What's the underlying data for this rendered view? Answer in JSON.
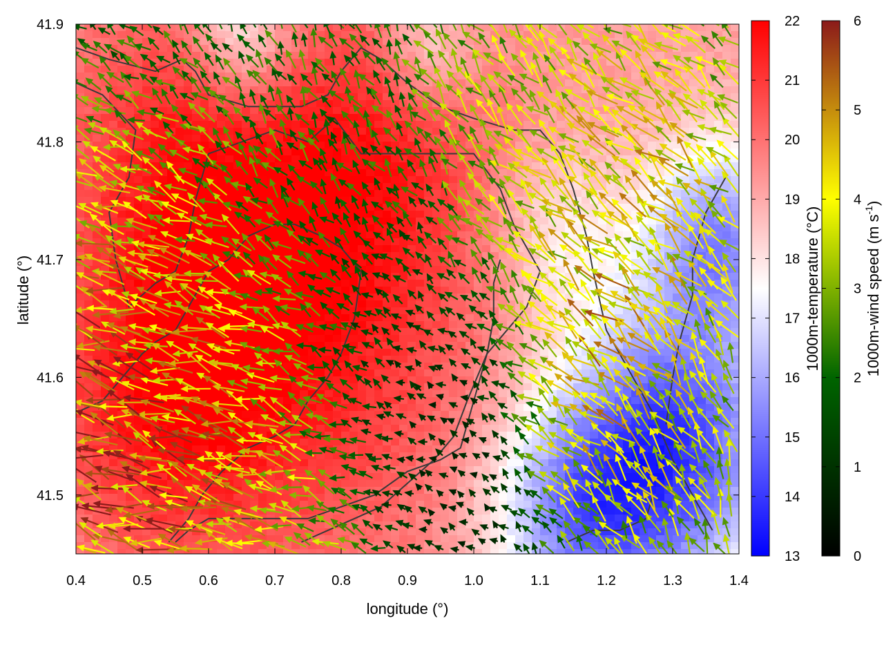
{
  "chart_data": {
    "type": "heatmap",
    "xlabel": "longitude (°)",
    "ylabel": "latitude (°)",
    "xlim": [
      0.4,
      1.4
    ],
    "ylim": [
      41.45,
      41.9
    ],
    "x_ticks": [
      "0.4",
      "0.5",
      "0.6",
      "0.7",
      "0.8",
      "0.9",
      "1.0",
      "1.1",
      "1.2",
      "1.3",
      "1.4"
    ],
    "y_ticks": [
      "41.5",
      "41.6",
      "41.7",
      "41.8",
      "41.9"
    ],
    "temperature_colorbar": {
      "label": "1000m-temperature (°C)",
      "range": [
        13,
        22
      ],
      "ticks": [
        "13",
        "14",
        "15",
        "16",
        "17",
        "18",
        "19",
        "20",
        "21",
        "22"
      ],
      "colors": [
        "#0000ff",
        "#ffffff",
        "#ff0000"
      ]
    },
    "wind_colorbar": {
      "label_main": "1000m-wind speed (m s",
      "label_exp": "-1",
      "label_close": ")",
      "range": [
        0,
        6
      ],
      "ticks": [
        "0",
        "1",
        "2",
        "3",
        "4",
        "5",
        "6"
      ],
      "colors": [
        "#000000",
        "#006400",
        "#ffff00",
        "#8b1a1a"
      ]
    },
    "temperature_field": {
      "background_c": 19.2,
      "features": [
        {
          "lon": 0.72,
          "lat": 41.67,
          "delta_c": 2.6,
          "radius_deg": 0.28
        },
        {
          "lon": 0.52,
          "lat": 41.57,
          "delta_c": 1.5,
          "radius_deg": 0.18
        },
        {
          "lon": 0.55,
          "lat": 41.8,
          "delta_c": 1.2,
          "radius_deg": 0.18
        },
        {
          "lon": 0.87,
          "lat": 41.8,
          "delta_c": 1.0,
          "radius_deg": 0.15
        },
        {
          "lon": 1.3,
          "lat": 41.54,
          "delta_c": -5.0,
          "radius_deg": 0.16
        },
        {
          "lon": 1.15,
          "lat": 41.48,
          "delta_c": -3.2,
          "radius_deg": 0.13
        },
        {
          "lon": 1.37,
          "lat": 41.72,
          "delta_c": -3.5,
          "radius_deg": 0.11
        },
        {
          "lon": 0.65,
          "lat": 41.89,
          "delta_c": -2.2,
          "radius_deg": 0.08
        },
        {
          "lon": 0.93,
          "lat": 41.88,
          "delta_c": -1.5,
          "radius_deg": 0.07
        },
        {
          "lon": 1.13,
          "lat": 41.72,
          "delta_c": -1.4,
          "radius_deg": 0.1
        }
      ]
    },
    "wind_field": {
      "arrow_spacing_deg": 0.016,
      "zones": [
        {
          "lon": 0.44,
          "lat": 41.52,
          "speed": 6.0,
          "dir_deg": 100,
          "radius_deg": 0.22
        },
        {
          "lon": 0.62,
          "lat": 41.55,
          "speed": 4.5,
          "dir_deg": 100,
          "radius_deg": 0.2
        },
        {
          "lon": 0.85,
          "lat": 41.62,
          "speed": 0.4,
          "dir_deg": 45,
          "radius_deg": 0.14
        },
        {
          "lon": 0.95,
          "lat": 41.56,
          "speed": 0.4,
          "dir_deg": 45,
          "radius_deg": 0.1
        },
        {
          "lon": 1.05,
          "lat": 41.82,
          "speed": 3.5,
          "dir_deg": 135,
          "radius_deg": 0.14
        },
        {
          "lon": 1.25,
          "lat": 41.75,
          "speed": 4.5,
          "dir_deg": 125,
          "radius_deg": 0.16
        },
        {
          "lon": 1.3,
          "lat": 41.55,
          "speed": 3.5,
          "dir_deg": 160,
          "radius_deg": 0.14
        },
        {
          "lon": 1.2,
          "lat": 41.6,
          "speed": 5.0,
          "dir_deg": 115,
          "radius_deg": 0.1
        },
        {
          "lon": 0.75,
          "lat": 41.82,
          "speed": 2.0,
          "dir_deg": 160,
          "radius_deg": 0.2
        }
      ]
    },
    "contours": [
      [
        [
          0.4,
          41.88
        ],
        [
          0.45,
          41.87
        ],
        [
          0.52,
          41.86
        ],
        [
          0.56,
          41.87
        ],
        [
          0.58,
          41.86
        ],
        [
          0.6,
          41.84
        ],
        [
          0.66,
          41.83
        ],
        [
          0.74,
          41.83
        ],
        [
          0.78,
          41.84
        ],
        [
          0.8,
          41.86
        ],
        [
          0.83,
          41.88
        ],
        [
          0.86,
          41.87
        ],
        [
          0.9,
          41.85
        ],
        [
          0.95,
          41.83
        ],
        [
          1.0,
          41.82
        ],
        [
          1.06,
          41.81
        ],
        [
          1.1,
          41.81
        ],
        [
          1.13,
          41.79
        ],
        [
          1.15,
          41.76
        ],
        [
          1.17,
          41.72
        ],
        [
          1.18,
          41.69
        ],
        [
          1.2,
          41.64
        ],
        [
          1.23,
          41.61
        ],
        [
          1.27,
          41.57
        ],
        [
          1.3,
          41.53
        ],
        [
          1.33,
          41.5
        ],
        [
          1.36,
          41.47
        ]
      ],
      [
        [
          0.4,
          41.85
        ],
        [
          0.44,
          41.84
        ],
        [
          0.49,
          41.81
        ],
        [
          0.48,
          41.77
        ],
        [
          0.45,
          41.74
        ],
        [
          0.46,
          41.7
        ],
        [
          0.48,
          41.66
        ],
        [
          0.52,
          41.68
        ],
        [
          0.55,
          41.69
        ],
        [
          0.57,
          41.72
        ],
        [
          0.58,
          41.75
        ],
        [
          0.59,
          41.77
        ],
        [
          0.6,
          41.79
        ],
        [
          0.65,
          41.8
        ],
        [
          0.7,
          41.81
        ],
        [
          0.75,
          41.8
        ],
        [
          0.79,
          41.82
        ],
        [
          0.83,
          41.79
        ],
        [
          0.86,
          41.79
        ],
        [
          0.9,
          41.79
        ],
        [
          0.94,
          41.79
        ],
        [
          0.97,
          41.79
        ],
        [
          1.0,
          41.79
        ],
        [
          1.04,
          41.76
        ],
        [
          1.06,
          41.73
        ],
        [
          1.08,
          41.71
        ],
        [
          1.1,
          41.69
        ],
        [
          1.08,
          41.66
        ],
        [
          1.05,
          41.64
        ],
        [
          1.02,
          41.62
        ],
        [
          1.0,
          41.58
        ],
        [
          0.98,
          41.54
        ],
        [
          0.95,
          41.53
        ],
        [
          0.9,
          41.52
        ],
        [
          0.85,
          41.5
        ],
        [
          0.8,
          41.49
        ],
        [
          0.75,
          41.48
        ],
        [
          0.7,
          41.48
        ],
        [
          0.65,
          41.48
        ],
        [
          0.6,
          41.48
        ],
        [
          0.57,
          41.47
        ],
        [
          0.55,
          41.46
        ]
      ],
      [
        [
          0.4,
          41.57
        ],
        [
          0.44,
          41.58
        ],
        [
          0.47,
          41.6
        ],
        [
          0.5,
          41.62
        ],
        [
          0.52,
          41.63
        ],
        [
          0.55,
          41.64
        ],
        [
          0.58,
          41.67
        ],
        [
          0.6,
          41.69
        ],
        [
          0.63,
          41.7
        ],
        [
          0.66,
          41.72
        ],
        [
          0.7,
          41.73
        ],
        [
          0.73,
          41.73
        ],
        [
          0.77,
          41.72
        ],
        [
          0.8,
          41.71
        ],
        [
          0.83,
          41.69
        ],
        [
          0.82,
          41.65
        ],
        [
          0.8,
          41.62
        ],
        [
          0.78,
          41.6
        ],
        [
          0.75,
          41.58
        ],
        [
          0.73,
          41.56
        ],
        [
          0.7,
          41.55
        ],
        [
          0.66,
          41.54
        ],
        [
          0.62,
          41.52
        ],
        [
          0.59,
          41.5
        ],
        [
          0.57,
          41.48
        ],
        [
          0.54,
          41.46
        ]
      ],
      [
        [
          0.74,
          41.46
        ],
        [
          0.78,
          41.47
        ],
        [
          0.82,
          41.48
        ],
        [
          0.86,
          41.49
        ],
        [
          0.9,
          41.51
        ],
        [
          0.94,
          41.53
        ],
        [
          0.97,
          41.55
        ],
        [
          0.99,
          41.58
        ],
        [
          1.02,
          41.62
        ],
        [
          1.03,
          41.65
        ],
        [
          1.03,
          41.68
        ],
        [
          1.04,
          41.7
        ]
      ],
      [
        [
          1.14,
          41.46
        ],
        [
          1.18,
          41.47
        ],
        [
          1.22,
          41.47
        ],
        [
          1.26,
          41.48
        ],
        [
          1.27,
          41.5
        ]
      ],
      [
        [
          1.38,
          41.77
        ],
        [
          1.35,
          41.74
        ],
        [
          1.33,
          41.7
        ],
        [
          1.33,
          41.67
        ],
        [
          1.31,
          41.63
        ],
        [
          1.3,
          41.6
        ],
        [
          1.29,
          41.56
        ]
      ]
    ]
  }
}
